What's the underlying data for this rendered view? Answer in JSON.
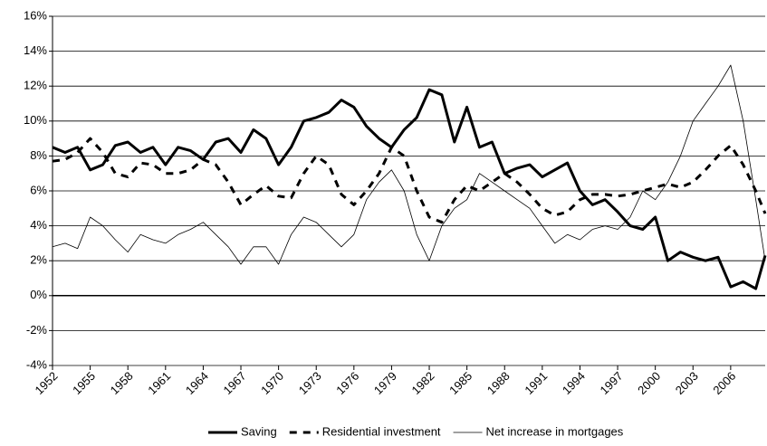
{
  "chart_data": {
    "type": "line",
    "x": [
      1952,
      1953,
      1954,
      1955,
      1956,
      1957,
      1958,
      1959,
      1960,
      1961,
      1962,
      1963,
      1964,
      1965,
      1966,
      1967,
      1968,
      1969,
      1970,
      1971,
      1972,
      1973,
      1974,
      1975,
      1976,
      1977,
      1978,
      1979,
      1980,
      1981,
      1982,
      1983,
      1984,
      1985,
      1986,
      1987,
      1988,
      1989,
      1990,
      1991,
      1992,
      1993,
      1994,
      1995,
      1996,
      1997,
      1998,
      1999,
      2000,
      2001,
      2002,
      2003,
      2004,
      2005,
      2006,
      2007,
      2008,
      2008.75
    ],
    "series": [
      {
        "name": "Saving",
        "color": "#000000",
        "line_width": 3,
        "line_style": "solid",
        "values": [
          8.5,
          8.2,
          8.5,
          7.2,
          7.5,
          8.6,
          8.8,
          8.2,
          8.5,
          7.5,
          8.5,
          8.3,
          7.8,
          8.8,
          9.0,
          8.2,
          9.5,
          9.0,
          7.5,
          8.5,
          10.0,
          10.2,
          10.5,
          11.2,
          10.8,
          9.7,
          9.0,
          8.5,
          9.5,
          10.2,
          11.8,
          11.5,
          8.8,
          10.8,
          8.5,
          8.8,
          7.0,
          7.3,
          7.5,
          6.8,
          7.2,
          7.6,
          6.0,
          5.2,
          5.5,
          4.8,
          4.0,
          3.8,
          4.5,
          2.0,
          2.5,
          2.2,
          2.0,
          2.2,
          0.5,
          0.8,
          0.4,
          2.3
        ]
      },
      {
        "name": "Residential investment",
        "color": "#000000",
        "line_width": 3,
        "line_style": "dashed",
        "values": [
          7.7,
          7.8,
          8.2,
          9.0,
          8.2,
          7.0,
          6.8,
          7.6,
          7.5,
          7.0,
          7.0,
          7.2,
          7.8,
          7.5,
          6.5,
          5.2,
          5.8,
          6.3,
          5.7,
          5.6,
          7.0,
          8.0,
          7.5,
          5.8,
          5.2,
          6.0,
          7.0,
          8.5,
          8.0,
          6.0,
          4.5,
          4.2,
          5.5,
          6.3,
          6.0,
          6.5,
          7.0,
          6.5,
          5.8,
          5.0,
          4.6,
          4.8,
          5.5,
          5.8,
          5.8,
          5.7,
          5.8,
          6.0,
          6.2,
          6.4,
          6.2,
          6.5,
          7.2,
          8.0,
          8.6,
          7.5,
          6.0,
          4.7
        ]
      },
      {
        "name": "Net increase in mortgages",
        "color": "#000000",
        "line_width": 0.8,
        "line_style": "solid",
        "values": [
          2.8,
          3.0,
          2.7,
          4.5,
          4.0,
          3.2,
          2.5,
          3.5,
          3.2,
          3.0,
          3.5,
          3.8,
          4.2,
          3.5,
          2.8,
          1.8,
          2.8,
          2.8,
          1.8,
          3.5,
          4.5,
          4.2,
          3.5,
          2.8,
          3.5,
          5.5,
          6.5,
          7.2,
          6.0,
          3.5,
          2.0,
          4.0,
          5.0,
          5.5,
          7.0,
          6.5,
          6.0,
          5.5,
          5.0,
          4.0,
          3.0,
          3.5,
          3.2,
          3.8,
          4.0,
          3.8,
          4.5,
          6.0,
          5.5,
          6.5,
          8.0,
          10.0,
          11.0,
          12.0,
          13.2,
          10.0,
          5.5,
          2.0
        ]
      }
    ],
    "xlim": [
      1952,
      2008.75
    ],
    "xticks": [
      1952,
      1955,
      1958,
      1961,
      1964,
      1967,
      1970,
      1973,
      1976,
      1979,
      1982,
      1985,
      1988,
      1991,
      1994,
      1997,
      2000,
      2003,
      2006
    ],
    "ylim": [
      -4,
      16
    ],
    "yticks": [
      {
        "value": -4,
        "label": "-4%"
      },
      {
        "value": -2,
        "label": "-2%"
      },
      {
        "value": 0,
        "label": "0%"
      },
      {
        "value": 2,
        "label": "2%"
      },
      {
        "value": 4,
        "label": "4%"
      },
      {
        "value": 6,
        "label": "6%"
      },
      {
        "value": 8,
        "label": "8%"
      },
      {
        "value": 10,
        "label": "10%"
      },
      {
        "value": 12,
        "label": "12%"
      },
      {
        "value": 14,
        "label": "14%"
      },
      {
        "value": 16,
        "label": "16%"
      }
    ],
    "grid": true,
    "legend": "bottom"
  }
}
